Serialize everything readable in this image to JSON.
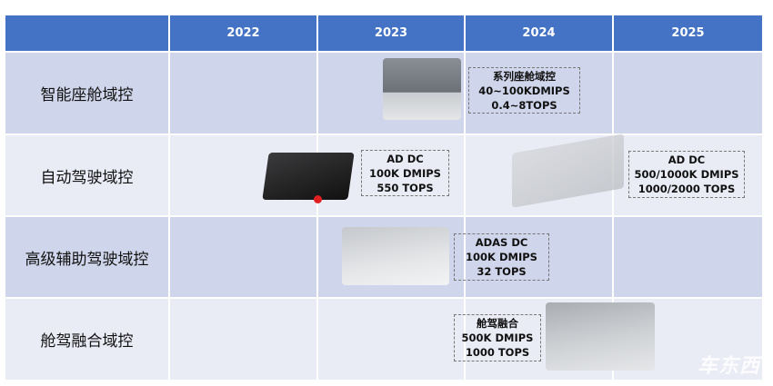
{
  "header": {
    "years": [
      "2022",
      "2023",
      "2024",
      "2025"
    ]
  },
  "rows": [
    {
      "label": "智能座舱域控",
      "box": {
        "lines": [
          "系列座舱域控",
          "40~100KDMIPS",
          "0.4~8TOPS"
        ]
      }
    },
    {
      "label": "自动驾驶域控",
      "boxes": [
        {
          "lines": [
            "AD DC",
            "100K DMIPS",
            "550 TOPS"
          ]
        },
        {
          "lines": [
            "AD DC",
            "500/1000K DMIPS",
            "1000/2000 TOPS"
          ]
        }
      ]
    },
    {
      "label": "高级辅助驾驶域控",
      "box": {
        "lines": [
          "ADAS DC",
          "100K DMIPS",
          "32 TOPS"
        ]
      }
    },
    {
      "label": "舱驾融合域控",
      "box": {
        "lines": [
          "舱驾融合",
          "500K DMIPS",
          "1000 TOPS"
        ]
      }
    }
  ],
  "watermark": "车东西",
  "colors": {
    "header": "#4472c4",
    "row_dark": "#cfd5ea",
    "row_light": "#e9ebf5"
  }
}
